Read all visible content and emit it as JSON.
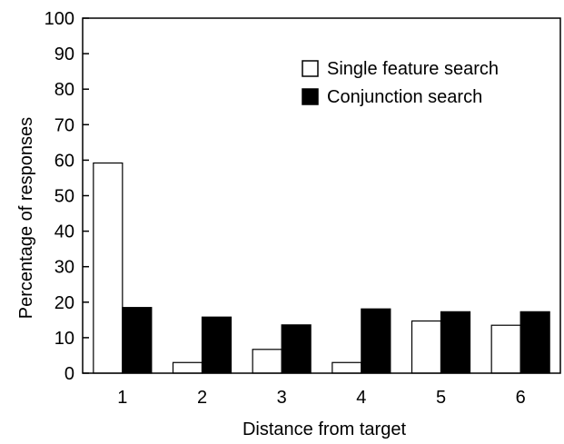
{
  "chart_data": {
    "type": "bar",
    "title": "",
    "xlabel": "Distance from target",
    "ylabel": "Percentage of responses",
    "categories": [
      "1",
      "2",
      "3",
      "4",
      "5",
      "6"
    ],
    "ylim": [
      0,
      100
    ],
    "yticks": [
      "0",
      "10",
      "20",
      "30",
      "40",
      "50",
      "60",
      "70",
      "80",
      "90",
      "100"
    ],
    "grid": false,
    "legend_position": "top-right",
    "series": [
      {
        "name": "Single feature search",
        "values": [
          59.2,
          3.0,
          6.7,
          3.0,
          14.7,
          13.5
        ],
        "fill": "#ffffff",
        "stroke": "#000000"
      },
      {
        "name": "Conjunction search",
        "values": [
          18.5,
          15.8,
          13.6,
          18.1,
          17.3,
          17.3
        ],
        "fill": "#000000",
        "stroke": "#000000"
      }
    ]
  }
}
